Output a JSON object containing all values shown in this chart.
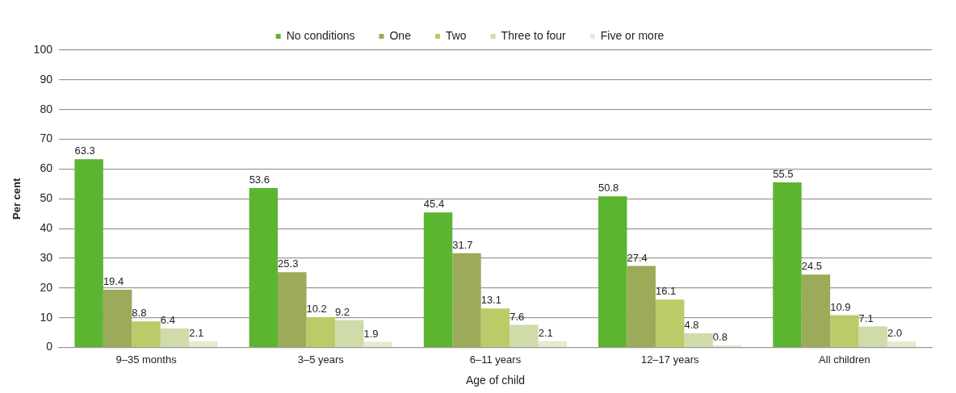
{
  "chart_data": {
    "type": "bar",
    "xlabel": "Age of child",
    "ylabel": "Per cent",
    "categories": [
      "9–35 months",
      "3–5 years",
      "6–11 years",
      "12–17 years",
      "All children"
    ],
    "series": [
      {
        "name": "No conditions",
        "color": "#5cb531",
        "values": [
          63.3,
          53.6,
          45.4,
          50.8,
          55.5
        ]
      },
      {
        "name": "One",
        "color": "#9bab5a",
        "values": [
          19.4,
          25.3,
          31.7,
          27.4,
          24.5
        ]
      },
      {
        "name": "Two",
        "color": "#bccb68",
        "values": [
          8.8,
          10.2,
          13.1,
          16.1,
          10.9
        ]
      },
      {
        "name": "Three to four",
        "color": "#cfdcaa",
        "values": [
          6.4,
          9.2,
          7.6,
          4.8,
          7.1
        ]
      },
      {
        "name": "Five or more",
        "color": "#e4ebcf",
        "values": [
          2.1,
          1.9,
          2.1,
          0.8,
          2.0
        ]
      }
    ],
    "value_labels": [
      [
        "63.3",
        "53.6",
        "45.4",
        "50.8",
        "55.5"
      ],
      [
        "19.4",
        "25.3",
        "31.7",
        "27.4",
        "24.5"
      ],
      [
        "8.8",
        "10.2",
        "13.1",
        "16.1",
        "10.9"
      ],
      [
        "6.4",
        "9.2",
        "7.6",
        "4.8",
        "7.1"
      ],
      [
        "2.1",
        "1.9",
        "2.1",
        "0.8",
        "2.0"
      ]
    ],
    "ylim": [
      0,
      100
    ],
    "yticks": [
      0,
      10,
      20,
      30,
      40,
      50,
      60,
      70,
      80,
      90,
      100
    ],
    "grid": "y",
    "legend": "top"
  }
}
